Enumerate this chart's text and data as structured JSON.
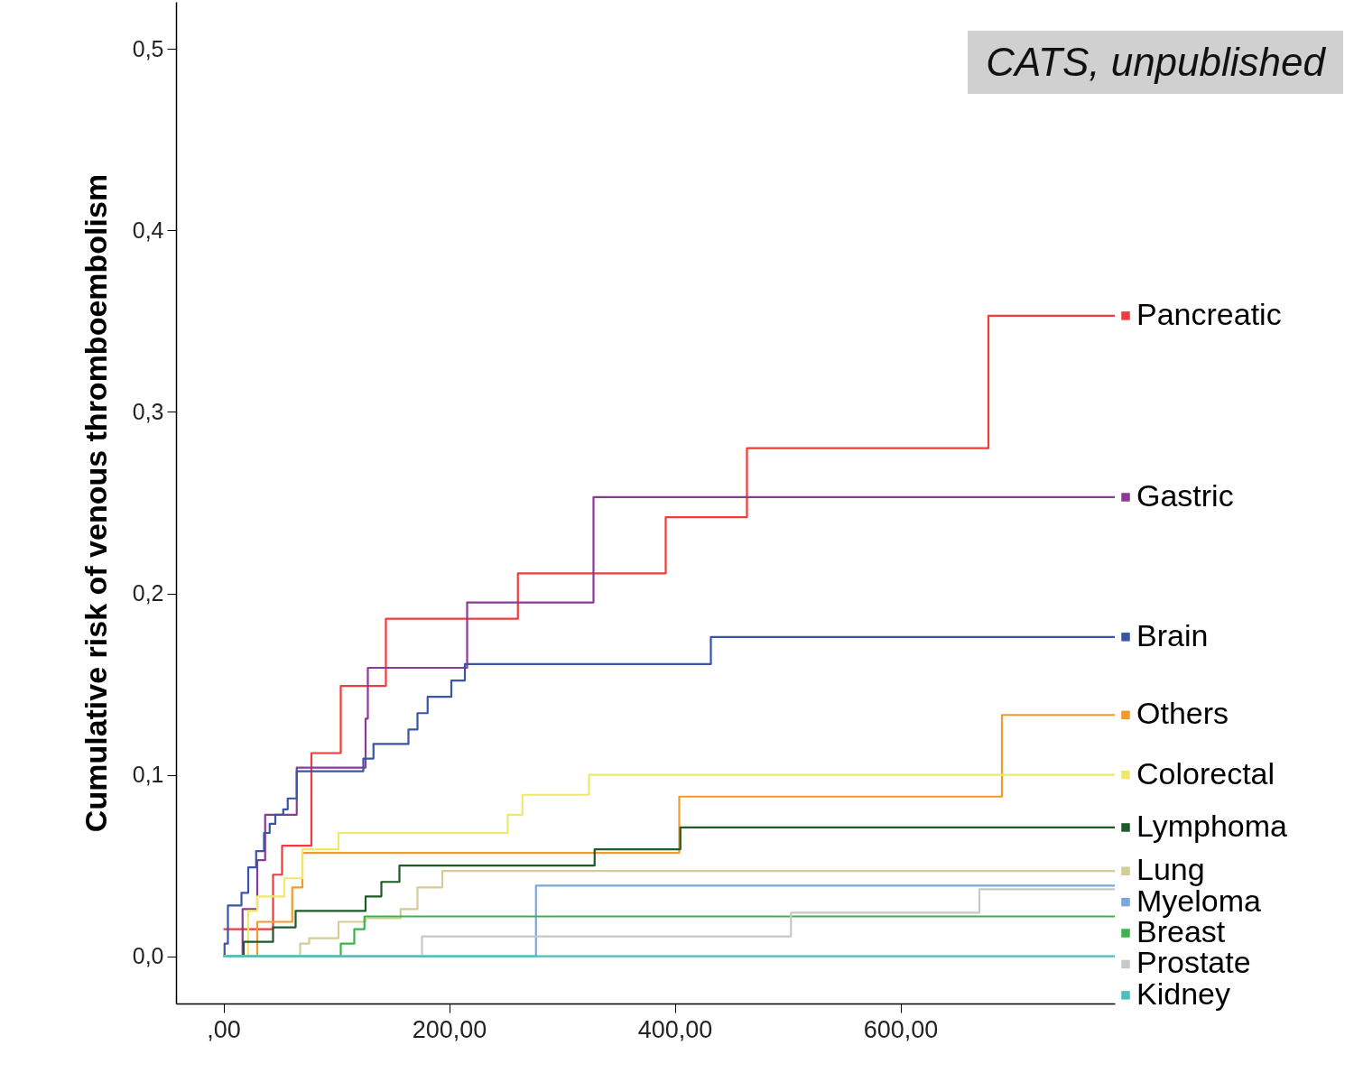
{
  "chart_data": {
    "type": "step",
    "ylabel": "Cumulative risk of venous thromboembolism",
    "annotations": [
      "CATS, unpublished"
    ],
    "xlim": [
      -42,
      790
    ],
    "ylim": [
      -0.026,
      0.526
    ],
    "xticks": [
      {
        "value": 0,
        "label": ",00"
      },
      {
        "value": 200,
        "label": "200,00"
      },
      {
        "value": 400,
        "label": "400,00"
      },
      {
        "value": 600,
        "label": "600,00"
      }
    ],
    "yticks": [
      {
        "value": 0,
        "label": "0,0"
      },
      {
        "value": 0.1,
        "label": "0,1"
      },
      {
        "value": 0.2,
        "label": "0,2"
      },
      {
        "value": 0.3,
        "label": "0,3"
      },
      {
        "value": 0.4,
        "label": "0,4"
      },
      {
        "value": 0.5,
        "label": "0,5"
      }
    ],
    "grid": false,
    "legend": "right",
    "series": [
      {
        "name": "Pancreatic",
        "color": "#f03c3c",
        "x": [
          0,
          44,
          52,
          78,
          104,
          144,
          261,
          392,
          464,
          678,
          790
        ],
        "values": [
          0.015,
          0.045,
          0.061,
          0.112,
          0.149,
          0.186,
          0.211,
          0.242,
          0.28,
          0.353,
          0.353
        ]
      },
      {
        "name": "Gastric",
        "color": "#8b3a96",
        "x": [
          0,
          17,
          30,
          37,
          65,
          126,
          128,
          216,
          328,
          790
        ],
        "values": [
          0,
          0.026,
          0.053,
          0.078,
          0.104,
          0.131,
          0.159,
          0.195,
          0.253,
          0.253
        ]
      },
      {
        "name": "Brain",
        "color": "#3a54a8",
        "x": [
          0,
          1,
          4,
          16,
          22,
          29,
          36,
          41,
          46,
          53,
          57,
          65,
          124,
          133,
          164,
          172,
          181,
          202,
          214,
          432,
          790
        ],
        "values": [
          0,
          0.007,
          0.028,
          0.035,
          0.049,
          0.058,
          0.068,
          0.073,
          0.078,
          0.081,
          0.087,
          0.102,
          0.109,
          0.117,
          0.125,
          0.134,
          0.143,
          0.152,
          0.161,
          0.176,
          0.176
        ]
      },
      {
        "name": "Others",
        "color": "#f39a2a",
        "x": [
          0,
          30,
          61,
          70,
          404,
          690,
          790
        ],
        "values": [
          0,
          0.019,
          0.038,
          0.057,
          0.088,
          0.133,
          0.133
        ]
      },
      {
        "name": "Colorectal",
        "color": "#f0e868",
        "x": [
          0,
          22,
          30,
          54,
          70,
          102,
          252,
          265,
          324,
          790
        ],
        "values": [
          0,
          0.025,
          0.033,
          0.043,
          0.059,
          0.068,
          0.078,
          0.089,
          0.1,
          0.1
        ]
      },
      {
        "name": "Lymphoma",
        "color": "#1e5a2a",
        "x": [
          0,
          18,
          44,
          64,
          126,
          140,
          156,
          329,
          405,
          790
        ],
        "values": [
          0,
          0.008,
          0.016,
          0.025,
          0.033,
          0.041,
          0.05,
          0.059,
          0.071,
          0.071
        ]
      },
      {
        "name": "Lung",
        "color": "#d4cc94",
        "x": [
          0,
          68,
          76,
          102,
          126,
          157,
          172,
          194,
          790
        ],
        "values": [
          0,
          0.007,
          0.01,
          0.019,
          0.021,
          0.026,
          0.038,
          0.047,
          0.047
        ]
      },
      {
        "name": "Myeloma",
        "color": "#7ba7d8",
        "x": [
          0,
          277,
          790
        ],
        "values": [
          0,
          0.039,
          0.039
        ]
      },
      {
        "name": "Breast",
        "color": "#3cb44a",
        "x": [
          0,
          104,
          116,
          125,
          790
        ],
        "values": [
          0,
          0.007,
          0.015,
          0.022,
          0.022
        ]
      },
      {
        "name": "Prostate",
        "color": "#c8c8c8",
        "x": [
          0,
          176,
          503,
          670,
          790
        ],
        "values": [
          0,
          0.011,
          0.024,
          0.037,
          0.037
        ]
      },
      {
        "name": "Kidney",
        "color": "#4bbfbf",
        "x": [
          0,
          790
        ],
        "values": [
          0,
          0
        ]
      }
    ]
  }
}
